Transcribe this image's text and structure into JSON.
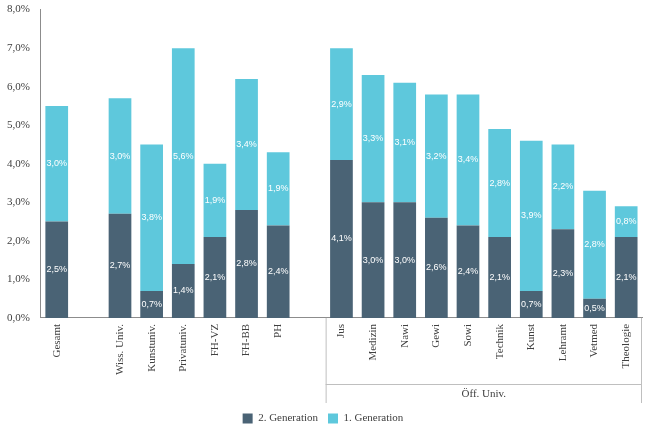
{
  "chart_data": {
    "type": "bar",
    "categories": [
      "Gesamt",
      null,
      "Wiss. Univ.",
      "Kunstuniv.",
      "Privatuniv.",
      "FH-VZ",
      "FH-BB",
      "PH",
      null,
      "Jus",
      "Medizin",
      "Nawi",
      "Gewi",
      "Sowi",
      "Technik",
      "Kunst",
      "Lehramt",
      "Vetmed",
      "Theologie"
    ],
    "category_groups": [
      {
        "label": "Öff. Univ.",
        "first": "Jus",
        "last": "Theologie"
      }
    ],
    "series": [
      {
        "name": "2. Generation",
        "color": "#4a6375",
        "values": [
          2.5,
          null,
          2.7,
          0.7,
          1.4,
          2.1,
          2.8,
          2.4,
          null,
          4.1,
          3.0,
          3.0,
          2.6,
          2.4,
          2.1,
          0.7,
          2.3,
          0.5,
          2.1
        ],
        "value_labels": [
          "2,5%",
          null,
          "2,7%",
          "0,7%",
          "1,4%",
          "2,1%",
          "2,8%",
          "2,4%",
          null,
          "4,1%",
          "3,0%",
          "3,0%",
          "2,6%",
          "2,4%",
          "2,1%",
          "0,7%",
          "2,3%",
          "0,5%",
          "2,1%"
        ]
      },
      {
        "name": "1. Generation",
        "color": "#5ec8dc",
        "values": [
          3.0,
          null,
          3.0,
          3.8,
          5.6,
          1.9,
          3.4,
          1.9,
          null,
          2.9,
          3.3,
          3.1,
          3.2,
          3.4,
          2.8,
          3.9,
          2.2,
          2.8,
          0.8
        ],
        "value_labels": [
          "3,0%",
          null,
          "3,0%",
          "3,8%",
          "5,6%",
          "1,9%",
          "3,4%",
          "1,9%",
          null,
          "2,9%",
          "3,3%",
          "3,1%",
          "3,2%",
          "3,4%",
          "2,8%",
          "3,9%",
          "2,2%",
          "2,8%",
          "0,8%"
        ]
      }
    ],
    "ylim": [
      0,
      8
    ],
    "yticks": [
      {
        "value": 0,
        "label": "0,0%"
      },
      {
        "value": 1,
        "label": "1,0%"
      },
      {
        "value": 2,
        "label": "2,0%"
      },
      {
        "value": 3,
        "label": "3,0%"
      },
      {
        "value": 4,
        "label": "4,0%"
      },
      {
        "value": 5,
        "label": "5,0%"
      },
      {
        "value": 6,
        "label": "6,0%"
      },
      {
        "value": 7,
        "label": "7,0%"
      },
      {
        "value": 8,
        "label": "8,0%"
      }
    ],
    "stacked": true,
    "data_labels": true,
    "grid": false,
    "legend": "bottom"
  }
}
